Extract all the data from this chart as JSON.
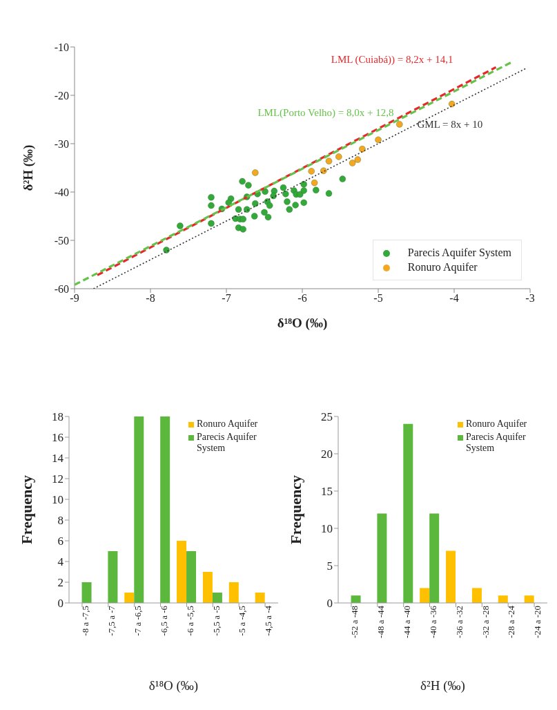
{
  "chart_data": [
    {
      "type": "scatter",
      "xlabel": "δ¹⁸O (‰)",
      "ylabel": "δ²H (‰)",
      "xlim": [
        -9,
        -3
      ],
      "ylim": [
        -60,
        -10
      ],
      "xticks": [
        -9,
        -8,
        -7,
        -6,
        -5,
        -4,
        -3
      ],
      "yticks": [
        -60,
        -50,
        -40,
        -30,
        -20,
        -10
      ],
      "legend": "bottom right",
      "series": [
        {
          "name": "Parecis Aquifer System",
          "color": "#34a83a",
          "marker": "circle",
          "x": [
            -7.79,
            -7.61,
            -7.2,
            -7.2,
            -7.2,
            -7.06,
            -6.94,
            -6.97,
            -6.88,
            -6.84,
            -6.82,
            -6.78,
            -6.84,
            -6.78,
            -6.79,
            -6.71,
            -6.73,
            -6.73,
            -6.62,
            -6.63,
            -6.59,
            -6.5,
            -6.49,
            -6.46,
            -6.43,
            -6.45,
            -6.37,
            -6.38,
            -6.25,
            -6.22,
            -6.2,
            -6.17,
            -6.11,
            -6.08,
            -6.09,
            -6.03,
            -5.98,
            -5.98,
            -5.98,
            -5.82,
            -5.65,
            -5.47
          ],
          "values": [
            -52.0,
            -47.0,
            -41.1,
            -42.8,
            -46.5,
            -43.5,
            -41.4,
            -42.2,
            -45.5,
            -43.6,
            -45.6,
            -45.6,
            -47.4,
            -47.7,
            -37.8,
            -38.6,
            -41.0,
            -43.6,
            -42.4,
            -45.0,
            -40.4,
            -44.2,
            -39.9,
            -42.0,
            -42.8,
            -45.2,
            -39.8,
            -40.8,
            -39.1,
            -40.4,
            -42.0,
            -43.6,
            -39.7,
            -40.5,
            -42.7,
            -40.5,
            -38.4,
            -39.7,
            -42.2,
            -39.6,
            -40.3,
            -37.3
          ]
        },
        {
          "name": "Ronuro Aquifer",
          "color": "#f5a623",
          "marker": "circle",
          "x": [
            -6.62,
            -5.88,
            -5.84,
            -5.72,
            -5.65,
            -5.52,
            -5.34,
            -5.27,
            -5.21,
            -5.0,
            -4.72,
            -4.03
          ],
          "values": [
            -36.0,
            -35.7,
            -38.1,
            -35.6,
            -33.6,
            -32.7,
            -34.0,
            -33.3,
            -31.1,
            -29.2,
            -26.0,
            -21.8
          ]
        },
        {
          "name": "LML (Cuiabá)) = 8,2x + 14,1",
          "type": "line",
          "marker": "none",
          "line_style": "dashed",
          "color": "#e8272a",
          "x": [
            -8.7,
            -3.45
          ],
          "values": [
            -57.2,
            -14.2
          ]
        },
        {
          "name": "LML(Porto Velho) = 8,0x + 12,8",
          "type": "line",
          "marker": "none",
          "line_style": "dashed",
          "color": "#66c24a",
          "x": [
            -9,
            -3.25
          ],
          "values": [
            -59.2,
            -13.2
          ]
        },
        {
          "name": "GML = 8x + 10",
          "type": "line",
          "marker": "none",
          "line_style": "dotted",
          "color": "#333333",
          "x": [
            -8.75,
            -3.05
          ],
          "values": [
            -60,
            -14.4
          ]
        }
      ]
    },
    {
      "type": "bar",
      "xlabel": "δ¹⁸O (‰)",
      "ylabel": "Frequency",
      "ylim": [
        0,
        18
      ],
      "yticks": [
        0,
        2,
        4,
        6,
        8,
        10,
        12,
        14,
        16,
        18
      ],
      "legend": "top right",
      "categories": [
        "-8 a -7,5",
        "-7,5 a -7",
        "-7 a -6,5",
        "-6,5 a -6",
        "-6 a -5,5",
        "-5,5 a -5",
        "-5 a -4,5",
        "-4,5 a -4"
      ],
      "series": [
        {
          "name": "Ronuro Aquifer",
          "color": "#ffc000",
          "values": [
            0,
            0,
            1,
            0,
            6,
            3,
            2,
            1
          ]
        },
        {
          "name": "Parecis Aquifer System",
          "color": "#5cb83c",
          "values": [
            2,
            5,
            18,
            18,
            5,
            1,
            0,
            0
          ]
        }
      ]
    },
    {
      "type": "bar",
      "xlabel": "δ²H (‰)",
      "ylabel": "Frequency",
      "ylim": [
        0,
        25
      ],
      "yticks": [
        0,
        5,
        10,
        15,
        20,
        25
      ],
      "legend": "top right",
      "categories": [
        "-52 a -48",
        "-48 a -44",
        "-44 a -40",
        "-40 a -36",
        "-36 a -32",
        "-32 a -28",
        "-28 a -24",
        "-24 a -20"
      ],
      "series": [
        {
          "name": "Ronuro Aquifer",
          "color": "#ffc000",
          "values": [
            0,
            0,
            0,
            2,
            7,
            2,
            1,
            1
          ]
        },
        {
          "name": "Parecis Aquifer System",
          "color": "#5cb83c",
          "values": [
            1,
            12,
            24,
            12,
            0,
            0,
            0,
            0
          ]
        }
      ]
    }
  ]
}
